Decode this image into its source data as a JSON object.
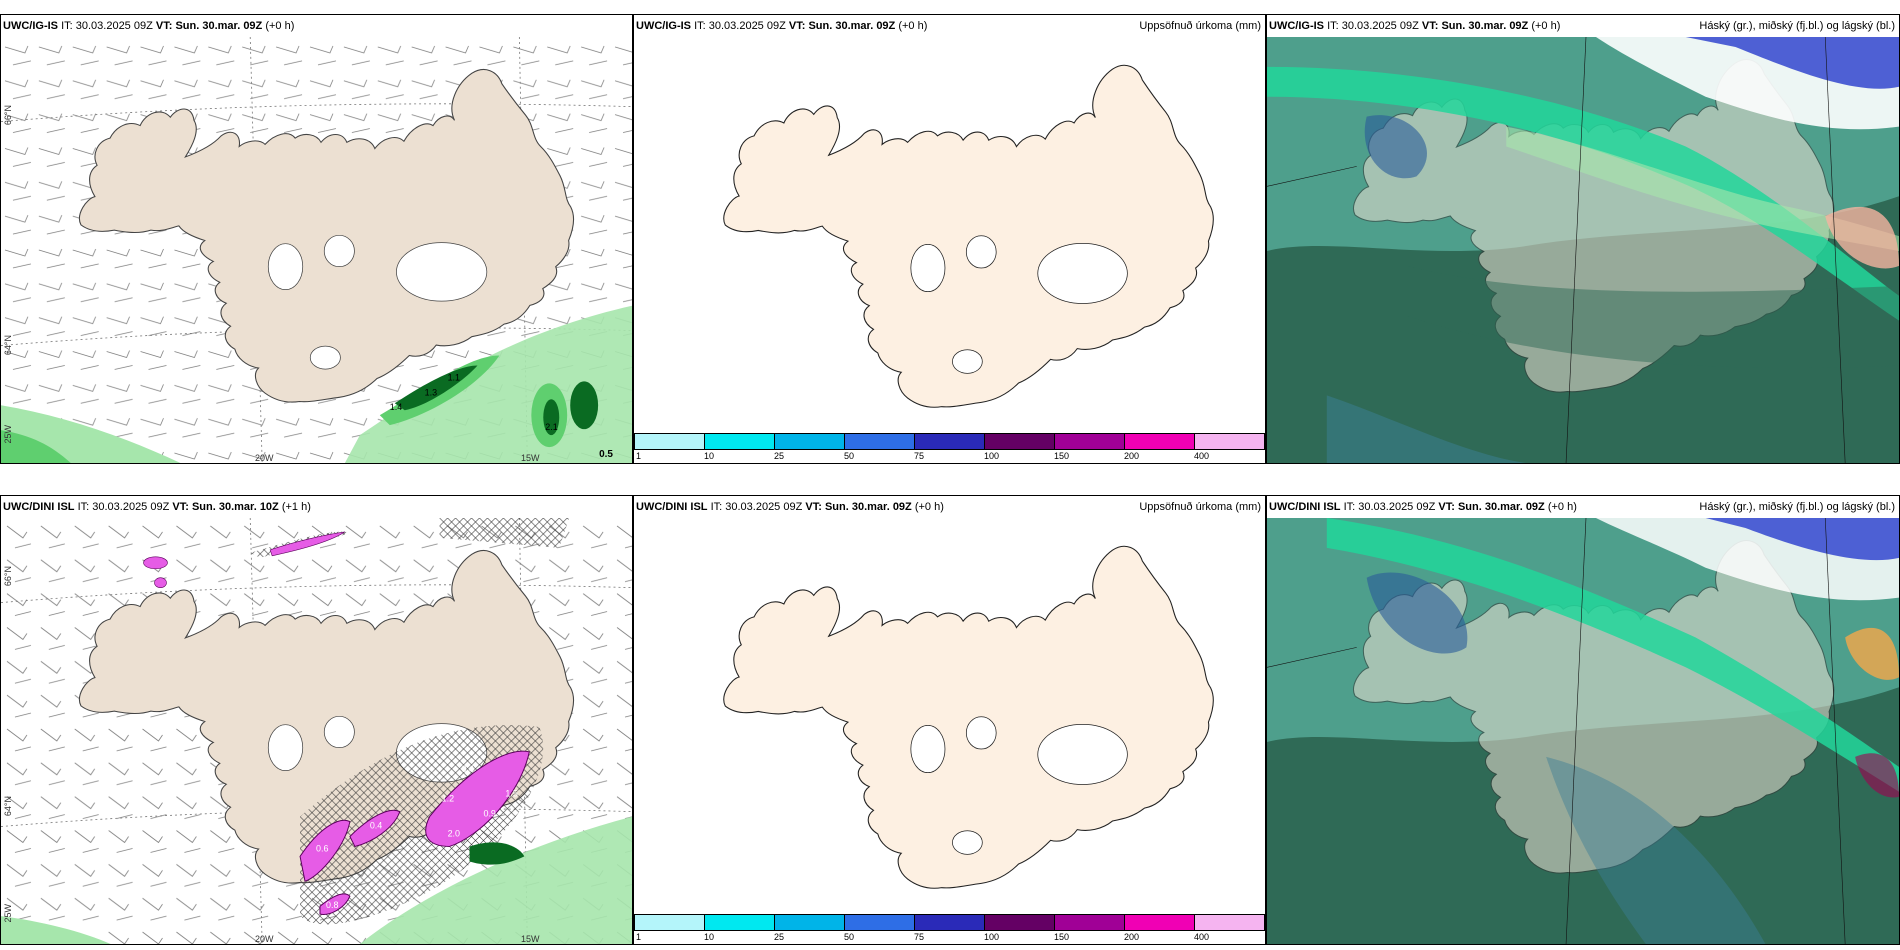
{
  "panels": {
    "p1": {
      "model": "UWC/IG-IS",
      "it_label": "IT:",
      "it": "30.03.2025 09Z",
      "vt_label": "VT:",
      "vt": "Sun. 30.mar. 09Z",
      "lead": "(+0 h)",
      "title": ""
    },
    "p2": {
      "model": "UWC/IG-IS",
      "it_label": "IT:",
      "it": "30.03.2025 09Z",
      "vt_label": "VT:",
      "vt": "Sun. 30.mar. 09Z",
      "lead": "(+0 h)",
      "title": "Uppsöfnuð úrkoma (mm)"
    },
    "p3": {
      "model": "UWC/IG-IS",
      "it_label": "IT:",
      "it": "30.03.2025 09Z",
      "vt_label": "VT:",
      "vt": "Sun. 30.mar. 09Z",
      "lead": "(+0 h)",
      "title": "Háský (gr.), miðský (fj.bl.) og lágský (bl.)"
    },
    "p4": {
      "model": "UWC/DINI ISL",
      "it_label": "IT:",
      "it": "30.03.2025 09Z",
      "vt_label": "VT:",
      "vt": "Sun. 30.mar. 10Z",
      "lead": "(+1 h)",
      "title": ""
    },
    "p5": {
      "model": "UWC/DINI ISL",
      "it_label": "IT:",
      "it": "30.03.2025 09Z",
      "vt_label": "VT:",
      "vt": "Sun. 30.mar. 09Z",
      "lead": "(+0 h)",
      "title": "Uppsöfnuð úrkoma (mm)"
    },
    "p6": {
      "model": "UWC/DINI ISL",
      "it_label": "IT:",
      "it": "30.03.2025 09Z",
      "vt_label": "VT:",
      "vt": "Sun. 30.mar. 09Z",
      "lead": "(+0 h)",
      "title": "Háský (gr.), miðský (fj.bl.) og lágský (bl.)"
    }
  },
  "axis_labels": {
    "lat66": "66°N",
    "lat64": "64°N",
    "lon20": "20W",
    "lon15": "15W",
    "lon25": "25W"
  },
  "precip_labels_top": [
    "1.4",
    "1.3",
    "1.1",
    "2.1",
    "0.5"
  ],
  "precip_labels_bottom": [
    "0.4",
    "1.2",
    "0.9",
    "1.5",
    "0.6",
    "0.4",
    "2.0",
    "0.8"
  ],
  "colorbar": {
    "ticks": [
      "1",
      "10",
      "25",
      "50",
      "75",
      "100",
      "150",
      "200",
      "400"
    ],
    "colors": [
      "#b4f5fa",
      "#00e8f0",
      "#00b4e8",
      "#2e6ee6",
      "#2a2ab8",
      "#640064",
      "#a00096",
      "#f000b4",
      "#f5b4f0"
    ]
  },
  "colors": {
    "land": "#ece0d2",
    "land_light": "#fdf0e2",
    "ocean": "#ffffff",
    "precip_green": "#5fcf6f",
    "precip_dark": "#0a6b22",
    "precip_magenta": "#e65ce6",
    "cloud_teal": "#4e9f8c",
    "cloud_dark": "#2f6a56",
    "cloud_green": "#22d69a",
    "cloud_blue": "#3c50d0"
  }
}
